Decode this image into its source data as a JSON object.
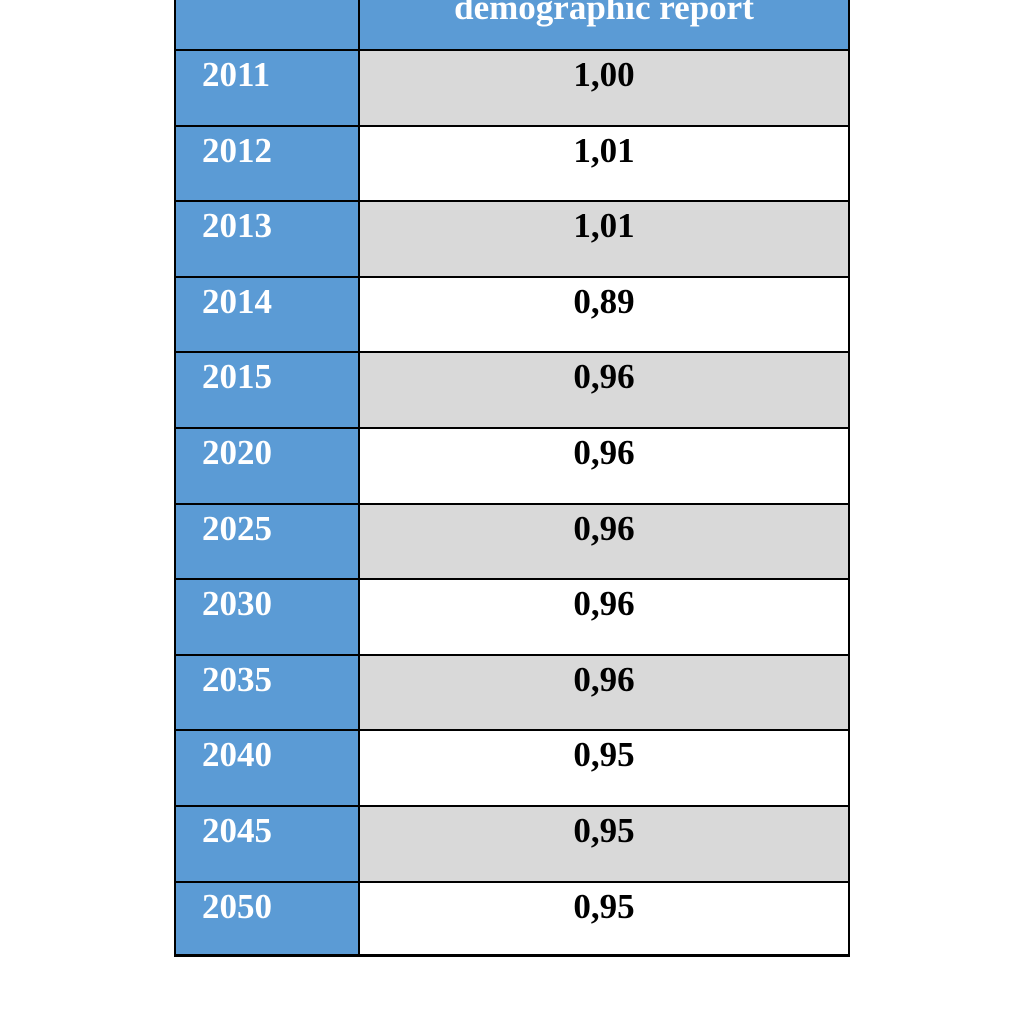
{
  "table": {
    "header": {
      "title": "demographic report"
    },
    "rows": [
      [
        "2011",
        "1,00"
      ],
      [
        "2012",
        "1,01"
      ],
      [
        "2013",
        "1,01"
      ],
      [
        "2014",
        "0,89"
      ],
      [
        "2015",
        "0,96"
      ],
      [
        "2020",
        "0,96"
      ],
      [
        "2025",
        "0,96"
      ],
      [
        "2030",
        "0,96"
      ],
      [
        "2035",
        "0,96"
      ],
      [
        "2040",
        "0,95"
      ],
      [
        "2045",
        "0,95"
      ],
      [
        "2050",
        "0,95"
      ]
    ]
  }
}
